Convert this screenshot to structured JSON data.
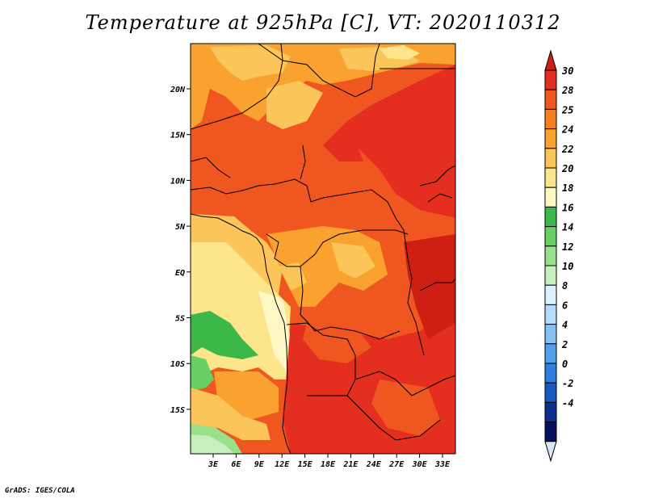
{
  "title": "Temperature at 925hPa [C], VT: 2020110312",
  "credit": "GrADS: IGES/COLA",
  "map": {
    "lat_labels": [
      "20N",
      "15N",
      "10N",
      "5N",
      "EQ",
      "5S",
      "10S",
      "15S"
    ],
    "lon_labels": [
      "3E",
      "6E",
      "9E",
      "12E",
      "15E",
      "18E",
      "21E",
      "24E",
      "27E",
      "30E",
      "33E"
    ]
  },
  "colorbar": {
    "labels": [
      "30",
      "28",
      "25",
      "24",
      "22",
      "20",
      "18",
      "16",
      "14",
      "12",
      "10",
      "8",
      "6",
      "4",
      "2",
      "0",
      "-2",
      "-4"
    ],
    "colors": [
      "#e42e1f",
      "#f0561f",
      "#f6801e",
      "#f9a22f",
      "#fbc559",
      "#fde58b",
      "#fff7c4",
      "#3cb849",
      "#67cf63",
      "#99e08b",
      "#c7efbd",
      "#dcf0fd",
      "#b6dcfb",
      "#85c1f5",
      "#53a0ec",
      "#2f7fde",
      "#1759bf",
      "#0b308f",
      "#07105e"
    ],
    "top_color": "#cf1f15",
    "bottom_color": "#dbe3f7"
  }
}
